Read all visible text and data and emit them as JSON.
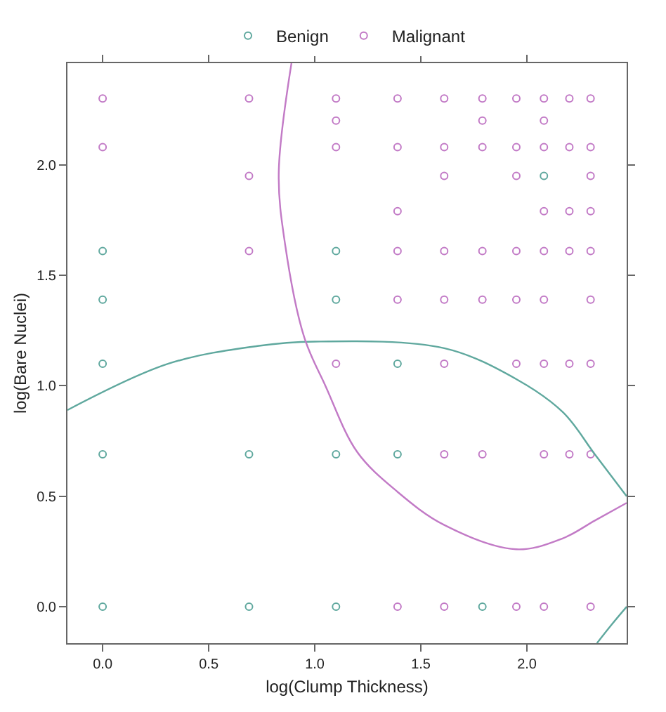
{
  "chart_data": {
    "type": "scatter",
    "xlabel": "log(Clump Thickness)",
    "ylabel": "log(Bare Nuclei)",
    "xlim": [
      -0.166,
      2.47
    ],
    "ylim": [
      -0.165,
      2.46
    ],
    "xticks": [
      {
        "value": 0,
        "label": "0.0"
      },
      {
        "value": 0.5,
        "label": "0.5"
      },
      {
        "value": 1,
        "label": "1.0"
      },
      {
        "value": 1.5,
        "label": "1.5"
      },
      {
        "value": 2,
        "label": "2.0"
      }
    ],
    "yticks": [
      {
        "value": 0,
        "label": "0.0"
      },
      {
        "value": 0.5,
        "label": "0.5"
      },
      {
        "value": 1,
        "label": "1.0"
      },
      {
        "value": 1.5,
        "label": "1.5"
      },
      {
        "value": 2,
        "label": "2.0"
      }
    ],
    "grid": false,
    "legend": "top",
    "series": [
      {
        "name": "Benign",
        "marker": "circle",
        "color": "#5fa89e",
        "x": [
          0,
          0,
          0,
          0,
          0,
          0.69,
          0.69,
          1.1,
          1.1,
          1.1,
          1.1,
          2.08,
          1.39,
          1.39,
          1.79
        ],
        "values": [
          1.61,
          1.39,
          1.1,
          0.69,
          0,
          0.69,
          0,
          1.61,
          1.39,
          0.69,
          0,
          1.95,
          1.1,
          0.69,
          0
        ]
      },
      {
        "name": "Malignant",
        "marker": "circle",
        "color": "#c27ac6",
        "x": [
          0,
          0,
          0.69,
          0.69,
          0.69,
          1.1,
          1.1,
          1.1,
          1.1,
          1.39,
          1.61,
          1.79,
          1.95,
          2.08,
          2.2,
          2.3,
          1.79,
          2.08,
          1.39,
          1.61,
          1.79,
          1.95,
          2.08,
          2.2,
          2.3,
          1.61,
          1.95,
          2.3,
          1.39,
          2.08,
          2.2,
          2.3,
          1.39,
          1.61,
          1.79,
          1.95,
          2.08,
          2.2,
          2.3,
          1.39,
          1.61,
          1.79,
          1.95,
          2.08,
          2.3,
          1.61,
          1.95,
          2.08,
          2.2,
          2.3,
          1.61,
          1.79,
          2.08,
          2.2,
          2.3,
          1.39,
          1.61,
          1.95,
          2.08,
          2.3
        ],
        "values": [
          2.3,
          2.08,
          2.3,
          1.95,
          1.61,
          2.3,
          2.2,
          2.08,
          1.1,
          2.3,
          2.3,
          2.3,
          2.3,
          2.3,
          2.3,
          2.3,
          2.2,
          2.2,
          2.08,
          2.08,
          2.08,
          2.08,
          2.08,
          2.08,
          2.08,
          1.95,
          1.95,
          1.95,
          1.79,
          1.79,
          1.79,
          1.79,
          1.61,
          1.61,
          1.61,
          1.61,
          1.61,
          1.61,
          1.61,
          1.39,
          1.39,
          1.39,
          1.39,
          1.39,
          1.39,
          1.1,
          1.1,
          1.1,
          1.1,
          1.1,
          0.69,
          0.69,
          0.69,
          0.69,
          0.69,
          0,
          0,
          0,
          0,
          0
        ]
      },
      {
        "type": "line",
        "marker": "none",
        "line_style": "solid",
        "color": "#5fa89e",
        "x": [
          -0.166,
          0.31,
          0.73,
          1.0,
          1.61,
          1.95,
          2.17,
          2.32,
          2.47,
          null,
          2.33,
          2.4,
          2.47
        ],
        "values": [
          0.89,
          1.1,
          1.18,
          1.2,
          1.17,
          1.03,
          0.88,
          0.69,
          0.5,
          null,
          -0.165,
          -0.08,
          0
        ]
      },
      {
        "type": "line",
        "marker": "none",
        "line_style": "solid",
        "color": "#c27ac6",
        "x": [
          0.89,
          0.83,
          0.86,
          0.95,
          1.05,
          1.2,
          1.39,
          1.61,
          1.95,
          2.17,
          2.32,
          2.47
        ],
        "values": [
          2.46,
          1.96,
          1.64,
          1.22,
          1.0,
          0.7,
          0.52,
          0.37,
          0.26,
          0.31,
          0.39,
          0.47
        ]
      }
    ]
  }
}
